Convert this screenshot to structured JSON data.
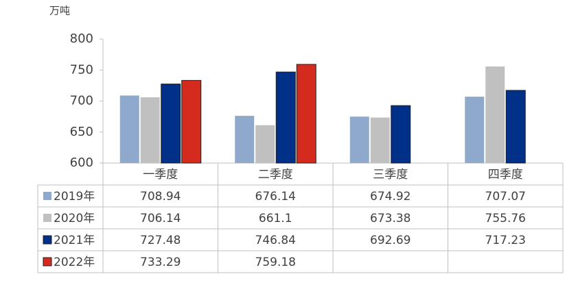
{
  "chart_data": {
    "type": "bar",
    "y_label": "万吨",
    "categories": [
      "一季度",
      "二季度",
      "三季度",
      "四季度"
    ],
    "series": [
      {
        "name": "2019年",
        "color": "#8ea9cc",
        "values": [
          708.94,
          676.14,
          674.92,
          707.07
        ]
      },
      {
        "name": "2020年",
        "color": "#c0c0c0",
        "values": [
          706.14,
          661.1,
          673.38,
          755.76
        ]
      },
      {
        "name": "2021年",
        "color": "#003087",
        "values": [
          727.48,
          746.84,
          692.69,
          717.23
        ]
      },
      {
        "name": "2022年",
        "color": "#d52b1e",
        "values": [
          733.29,
          759.18,
          null,
          null
        ]
      }
    ],
    "ylim": [
      600,
      800
    ],
    "yticks": [
      600,
      650,
      700,
      750,
      800
    ],
    "grid": false,
    "data_table": true
  }
}
